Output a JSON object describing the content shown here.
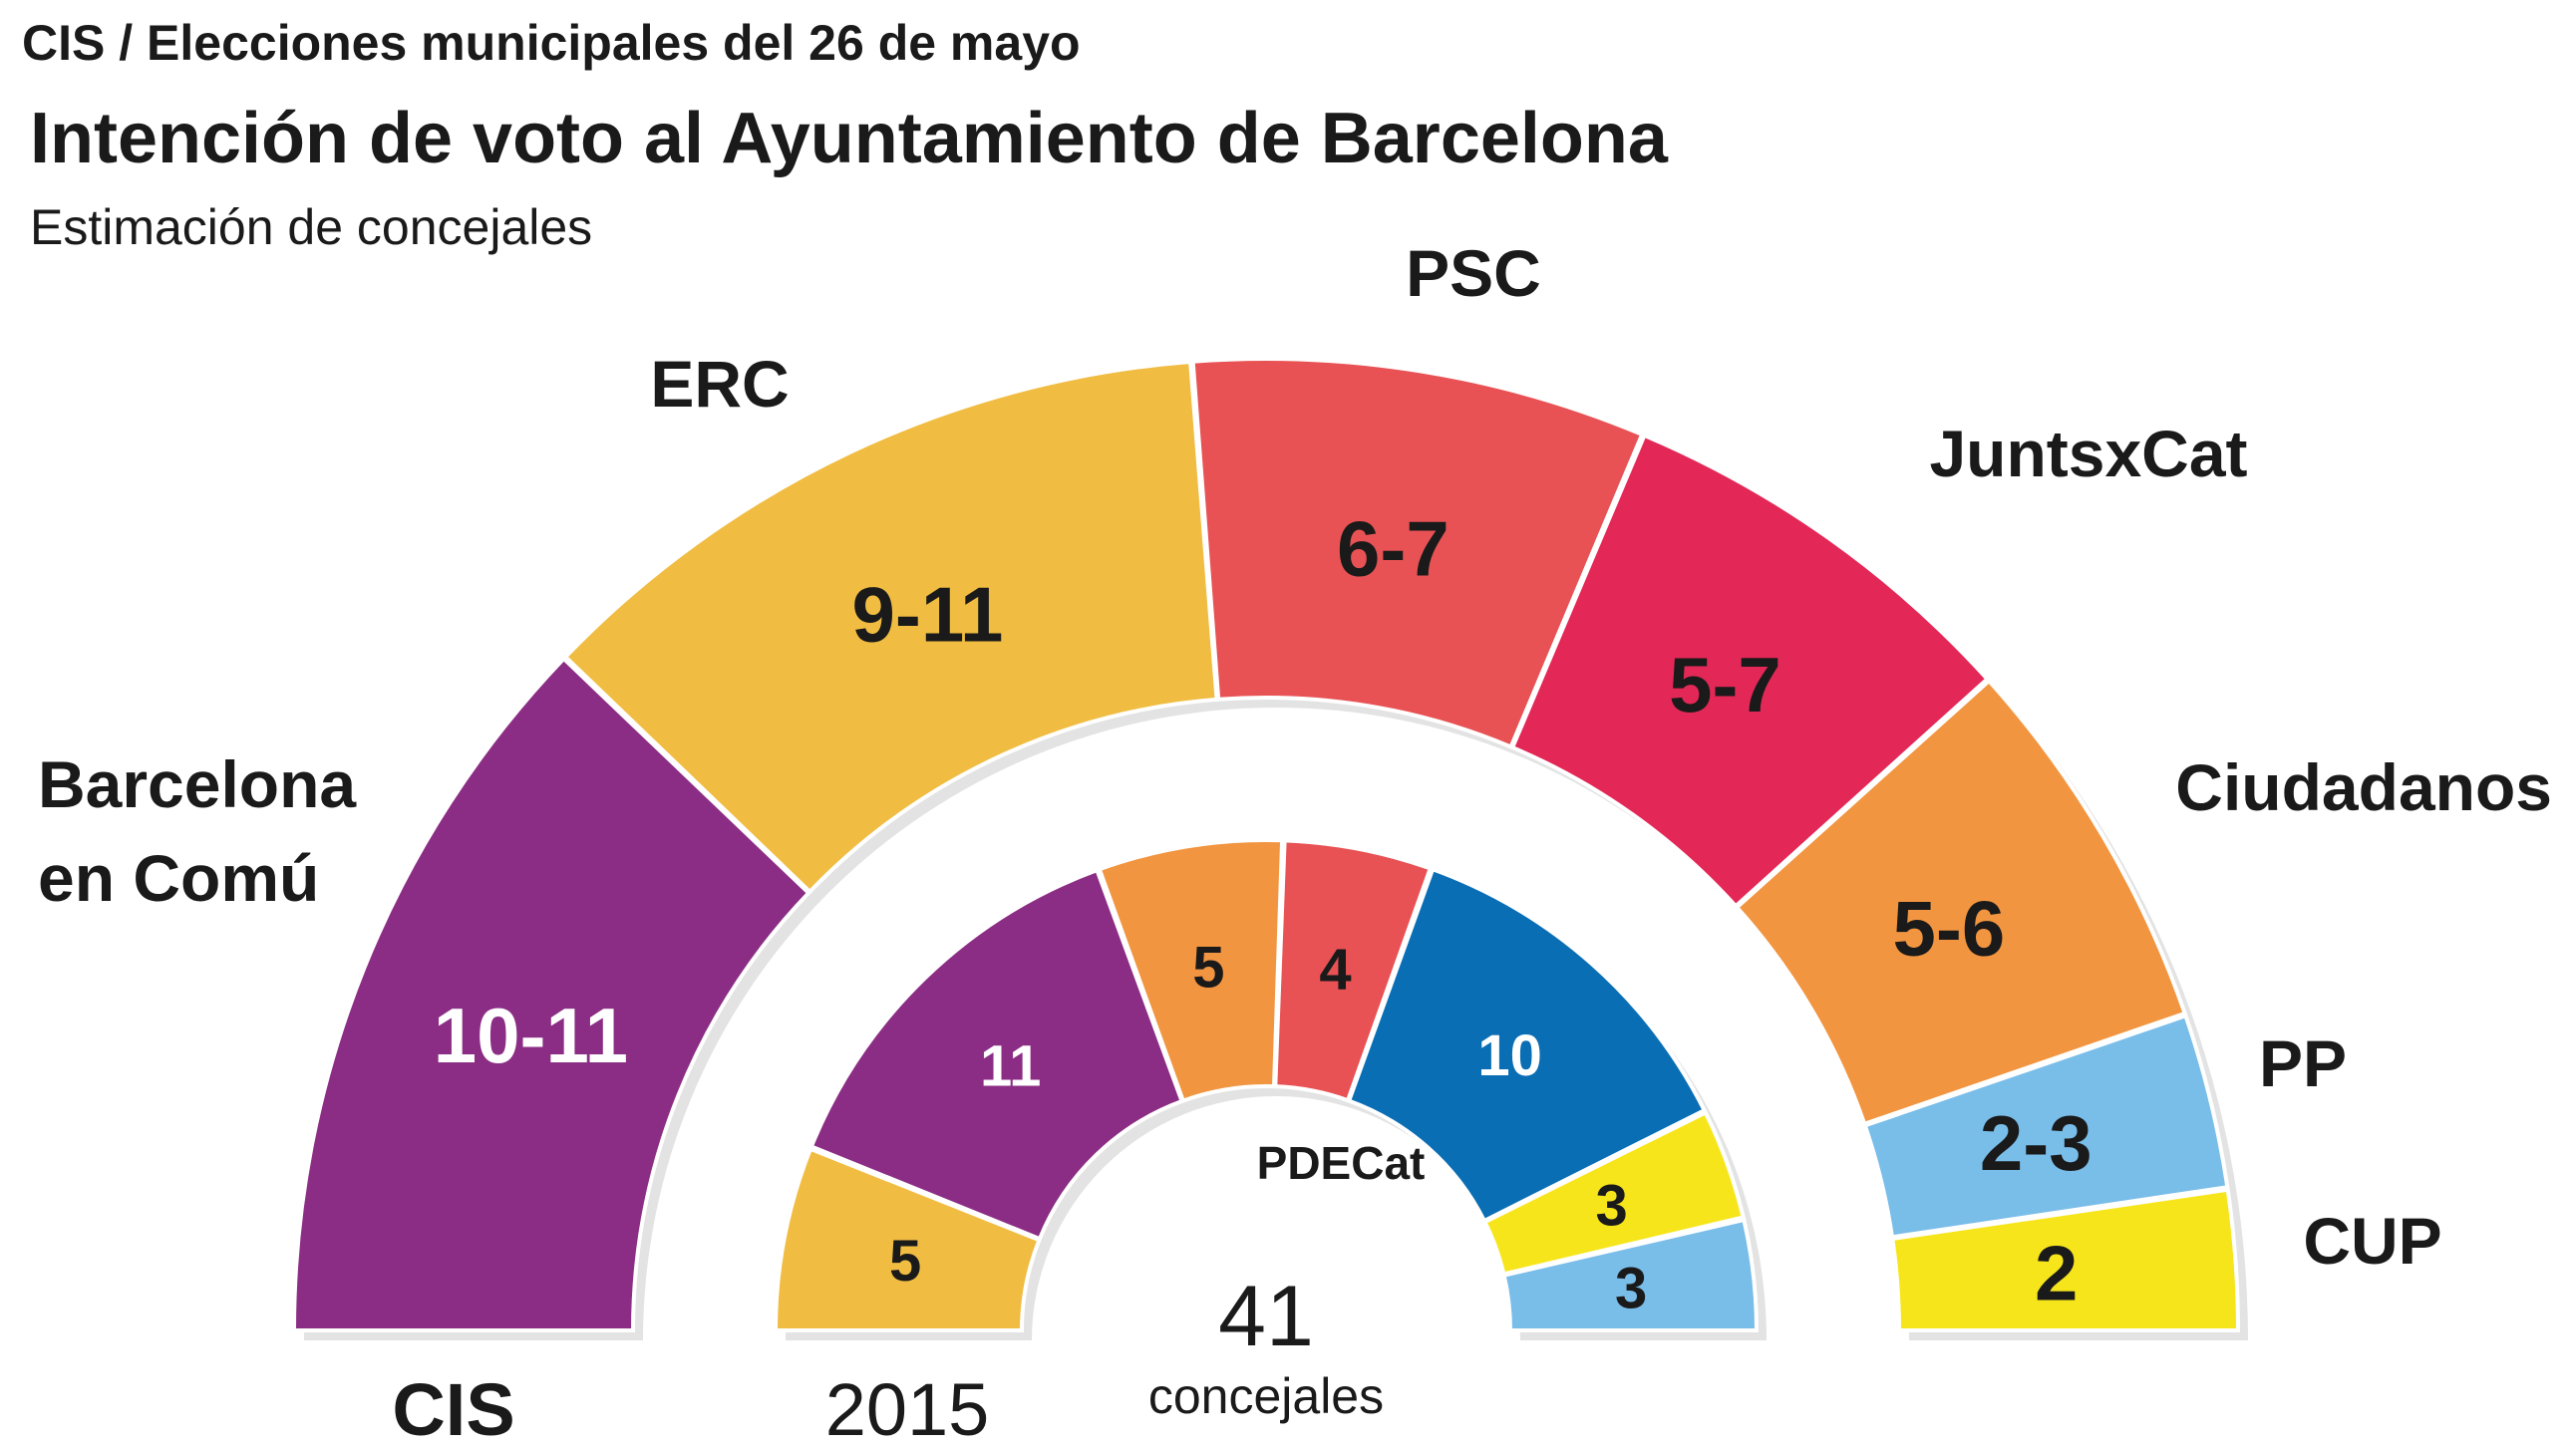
{
  "header": {
    "kicker": "CIS / Elecciones municipales del 26 de mayo",
    "title": "Intención de voto al Ayuntamiento de Barcelona",
    "subtitle": "Estimación de concejales"
  },
  "colors": {
    "barcelona_en_comu": "#8b2d84",
    "erc": "#f0bd42",
    "psc": "#e85254",
    "juntsxcat": "#e32857",
    "ciudadanos": "#f29540",
    "pp": "#79bde9",
    "cup": "#f7e51c",
    "pdecat": "#0a6eb4",
    "shadow": "#e3e3e3",
    "separator": "#ffffff"
  },
  "chart_data": [
    {
      "type": "pie",
      "subtype": "parliament-hemicycle",
      "name": "CIS",
      "unit": "concejales",
      "slices": [
        {
          "party": "Barcelona en Comú",
          "label_lines": [
            "Barcelona",
            "en Comú"
          ],
          "value": "10-11",
          "low": 10,
          "high": 11,
          "color": "#8b2d84",
          "text_color": "#ffffff"
        },
        {
          "party": "ERC",
          "label_lines": [
            "ERC"
          ],
          "value": "9-11",
          "low": 9,
          "high": 11,
          "color": "#f0bd42",
          "text_color": "#1a1a1a"
        },
        {
          "party": "PSC",
          "label_lines": [
            "PSC"
          ],
          "value": "6-7",
          "low": 6,
          "high": 7,
          "color": "#e85254",
          "text_color": "#1a1a1a"
        },
        {
          "party": "JuntsxCat",
          "label_lines": [
            "JuntsxCat"
          ],
          "value": "5-7",
          "low": 5,
          "high": 7,
          "color": "#e32857",
          "text_color": "#1a1a1a"
        },
        {
          "party": "Ciudadanos",
          "label_lines": [
            "Ciudadanos"
          ],
          "value": "5-6",
          "low": 5,
          "high": 6,
          "color": "#f29540",
          "text_color": "#1a1a1a"
        },
        {
          "party": "PP",
          "label_lines": [
            "PP"
          ],
          "value": "2-3",
          "low": 2,
          "high": 3,
          "color": "#79bde9",
          "text_color": "#1a1a1a"
        },
        {
          "party": "CUP",
          "label_lines": [
            "CUP"
          ],
          "value": "2",
          "low": 2,
          "high": 2,
          "color": "#f7e51c",
          "text_color": "#1a1a1a"
        }
      ]
    },
    {
      "type": "pie",
      "subtype": "parliament-hemicycle",
      "name": "2015",
      "total": "41",
      "total_label": "concejales",
      "annotation": "PDECat",
      "slices": [
        {
          "party": "ERC",
          "value": 5,
          "color": "#f0bd42",
          "text_color": "#1a1a1a"
        },
        {
          "party": "Barcelona en Comú",
          "value": 11,
          "color": "#8b2d84",
          "text_color": "#ffffff"
        },
        {
          "party": "Ciudadanos",
          "value": 5,
          "color": "#f29540",
          "text_color": "#1a1a1a"
        },
        {
          "party": "PSC",
          "value": 4,
          "color": "#e85254",
          "text_color": "#1a1a1a"
        },
        {
          "party": "PDECat",
          "value": 10,
          "color": "#0a6eb4",
          "text_color": "#ffffff"
        },
        {
          "party": "CUP",
          "value": 3,
          "color": "#f7e51c",
          "text_color": "#1a1a1a"
        },
        {
          "party": "PP",
          "value": 3,
          "color": "#79bde9",
          "text_color": "#1a1a1a"
        }
      ]
    }
  ]
}
